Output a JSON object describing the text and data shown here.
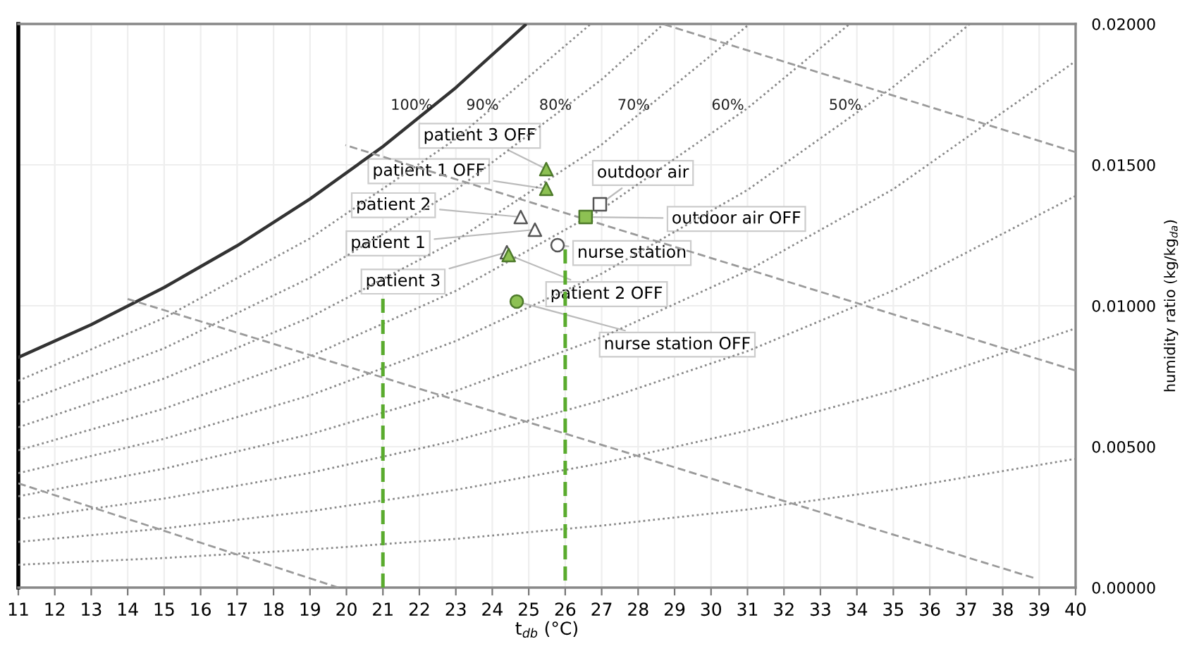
{
  "chart_data": {
    "type": "scatter",
    "xlabel": "t$_{db}$ (°C)",
    "ylabel": "humidity ratio (kg/kg$_{da}$)",
    "xlim": [
      11,
      40
    ],
    "xticks": [
      11,
      12,
      13,
      14,
      15,
      16,
      17,
      18,
      19,
      20,
      21,
      22,
      23,
      24,
      25,
      26,
      27,
      28,
      29,
      30,
      31,
      32,
      33,
      34,
      35,
      36,
      37,
      38,
      39,
      40
    ],
    "ylim": [
      0,
      0.02
    ],
    "yticks": [
      {
        "value": 0,
        "label": "0.00000"
      },
      {
        "value": 0.005,
        "label": "0.00500"
      },
      {
        "value": 0.01,
        "label": "0.01000"
      },
      {
        "value": 0.015,
        "label": "0.01500"
      },
      {
        "value": 0.02,
        "label": "0.02000"
      }
    ],
    "grid": true,
    "annotations": [
      "100%",
      "90%",
      "80%",
      "70%",
      "60%",
      "50%"
    ],
    "series": [
      {
        "type": "line",
        "color": "#333333",
        "line_style": "solid",
        "x": [
          11,
          13,
          15,
          17,
          19,
          21,
          23,
          24.9
        ],
        "values": [
          0.00817,
          0.00933,
          0.01065,
          0.01213,
          0.01379,
          0.01565,
          0.01774,
          0.01996
        ]
      },
      {
        "type": "line",
        "color": "#8a8a8a",
        "line_style": "dotted",
        "x": [
          11,
          15,
          19,
          23,
          26.7
        ],
        "values": [
          0.00734,
          0.00957,
          0.01239,
          0.01592,
          0.02
        ]
      },
      {
        "type": "line",
        "color": "#8a8a8a",
        "line_style": "dotted",
        "x": [
          11,
          15,
          19,
          23,
          27,
          28.7
        ],
        "values": [
          0.00652,
          0.00849,
          0.01099,
          0.01411,
          0.01803,
          0.02
        ]
      },
      {
        "type": "line",
        "color": "#8a8a8a",
        "line_style": "dotted",
        "x": [
          11,
          15,
          19,
          23,
          27,
          31
        ],
        "values": [
          0.00569,
          0.00742,
          0.00959,
          0.01231,
          0.01572,
          0.01994
        ]
      },
      {
        "type": "line",
        "color": "#8a8a8a",
        "line_style": "dotted",
        "x": [
          11,
          15,
          19,
          23,
          27,
          31,
          33.8
        ],
        "values": [
          0.00487,
          0.00635,
          0.0082,
          0.01053,
          0.01342,
          0.01701,
          0.02
        ]
      },
      {
        "type": "line",
        "color": "#8a8a8a",
        "line_style": "dotted",
        "x": [
          11,
          15,
          19,
          23,
          27,
          31,
          35,
          37.1
        ],
        "values": [
          0.00406,
          0.00528,
          0.00682,
          0.00875,
          0.01114,
          0.01411,
          0.01777,
          0.02
        ]
      },
      {
        "type": "line",
        "color": "#8a8a8a",
        "line_style": "dotted",
        "x": [
          11,
          15,
          19,
          23,
          27,
          31,
          35,
          40
        ],
        "values": [
          0.00324,
          0.00422,
          0.00544,
          0.00698,
          0.00888,
          0.01124,
          0.01414,
          0.01868
        ]
      },
      {
        "type": "line",
        "color": "#8a8a8a",
        "line_style": "dotted",
        "x": [
          11,
          15,
          19,
          23,
          27,
          31,
          35,
          40
        ],
        "values": [
          0.00243,
          0.00316,
          0.00407,
          0.00522,
          0.00664,
          0.00839,
          0.01054,
          0.0139
        ]
      },
      {
        "type": "line",
        "color": "#8a8a8a",
        "line_style": "dotted",
        "x": [
          11,
          15,
          19,
          23,
          27,
          31,
          35,
          40
        ],
        "values": [
          0.00162,
          0.0021,
          0.00271,
          0.00347,
          0.00441,
          0.00557,
          0.00699,
          0.0092
        ]
      },
      {
        "type": "line",
        "color": "#8a8a8a",
        "line_style": "dotted",
        "x": [
          11,
          15,
          19,
          23,
          27,
          31,
          35,
          40
        ],
        "values": [
          0.00081,
          0.00105,
          0.00135,
          0.00173,
          0.0022,
          0.00277,
          0.00348,
          0.00457
        ]
      },
      {
        "type": "line",
        "color": "#9a9a9a",
        "line_style": "dashed",
        "x": [
          28.67,
          40
        ],
        "values": [
          0.02,
          0.01545
        ]
      },
      {
        "type": "line",
        "color": "#9a9a9a",
        "line_style": "dashed",
        "x": [
          19.97,
          40
        ],
        "values": [
          0.0157,
          0.0077
        ]
      },
      {
        "type": "line",
        "color": "#9a9a9a",
        "line_style": "dashed",
        "x": [
          13.98,
          38.84
        ],
        "values": [
          0.01025,
          0.00035
        ]
      },
      {
        "type": "line",
        "color": "#9a9a9a",
        "line_style": "dashed",
        "x": [
          11,
          19.78
        ],
        "values": [
          0.0037,
          0
        ]
      },
      {
        "type": "line",
        "color": "#5aab2e",
        "line_style": "dashed",
        "x": [
          21,
          21
        ],
        "values": [
          0,
          0.01025
        ]
      },
      {
        "type": "line",
        "color": "#5aab2e",
        "line_style": "dashed",
        "x": [
          26,
          26
        ],
        "values": [
          0,
          0.012
        ]
      },
      {
        "name": "patient 3 OFF",
        "color": "#8dc153",
        "marker": "triangle",
        "x": [
          25.48
        ],
        "values": [
          0.01485
        ]
      },
      {
        "name": "patient 1 OFF",
        "color": "#8dc153",
        "marker": "triangle",
        "x": [
          25.48
        ],
        "values": [
          0.01415
        ]
      },
      {
        "name": "patient 2",
        "color": "#ffffff",
        "marker": "triangle",
        "x": [
          24.78
        ],
        "values": [
          0.01315
        ]
      },
      {
        "name": "patient 1",
        "color": "#ffffff",
        "marker": "triangle",
        "x": [
          25.17
        ],
        "values": [
          0.0127
        ]
      },
      {
        "name": "patient 3",
        "color": "#ffffff",
        "marker": "triangle",
        "x": [
          24.4
        ],
        "values": [
          0.0119
        ]
      },
      {
        "name": "patient 2 OFF",
        "color": "#8dc153",
        "marker": "triangle",
        "x": [
          24.45
        ],
        "values": [
          0.0118
        ]
      },
      {
        "name": "nurse station",
        "color": "#ffffff",
        "marker": "circle",
        "x": [
          25.79
        ],
        "values": [
          0.01215
        ]
      },
      {
        "name": "nurse station OFF",
        "color": "#8dc153",
        "marker": "circle",
        "x": [
          24.67
        ],
        "values": [
          0.01015
        ]
      },
      {
        "name": "outdoor air",
        "color": "#ffffff",
        "marker": "square",
        "x": [
          26.95
        ],
        "values": [
          0.0136
        ]
      },
      {
        "name": "outdoor air OFF",
        "color": "#8dc153",
        "marker": "square",
        "x": [
          26.56
        ],
        "values": [
          0.01315
        ]
      }
    ]
  }
}
